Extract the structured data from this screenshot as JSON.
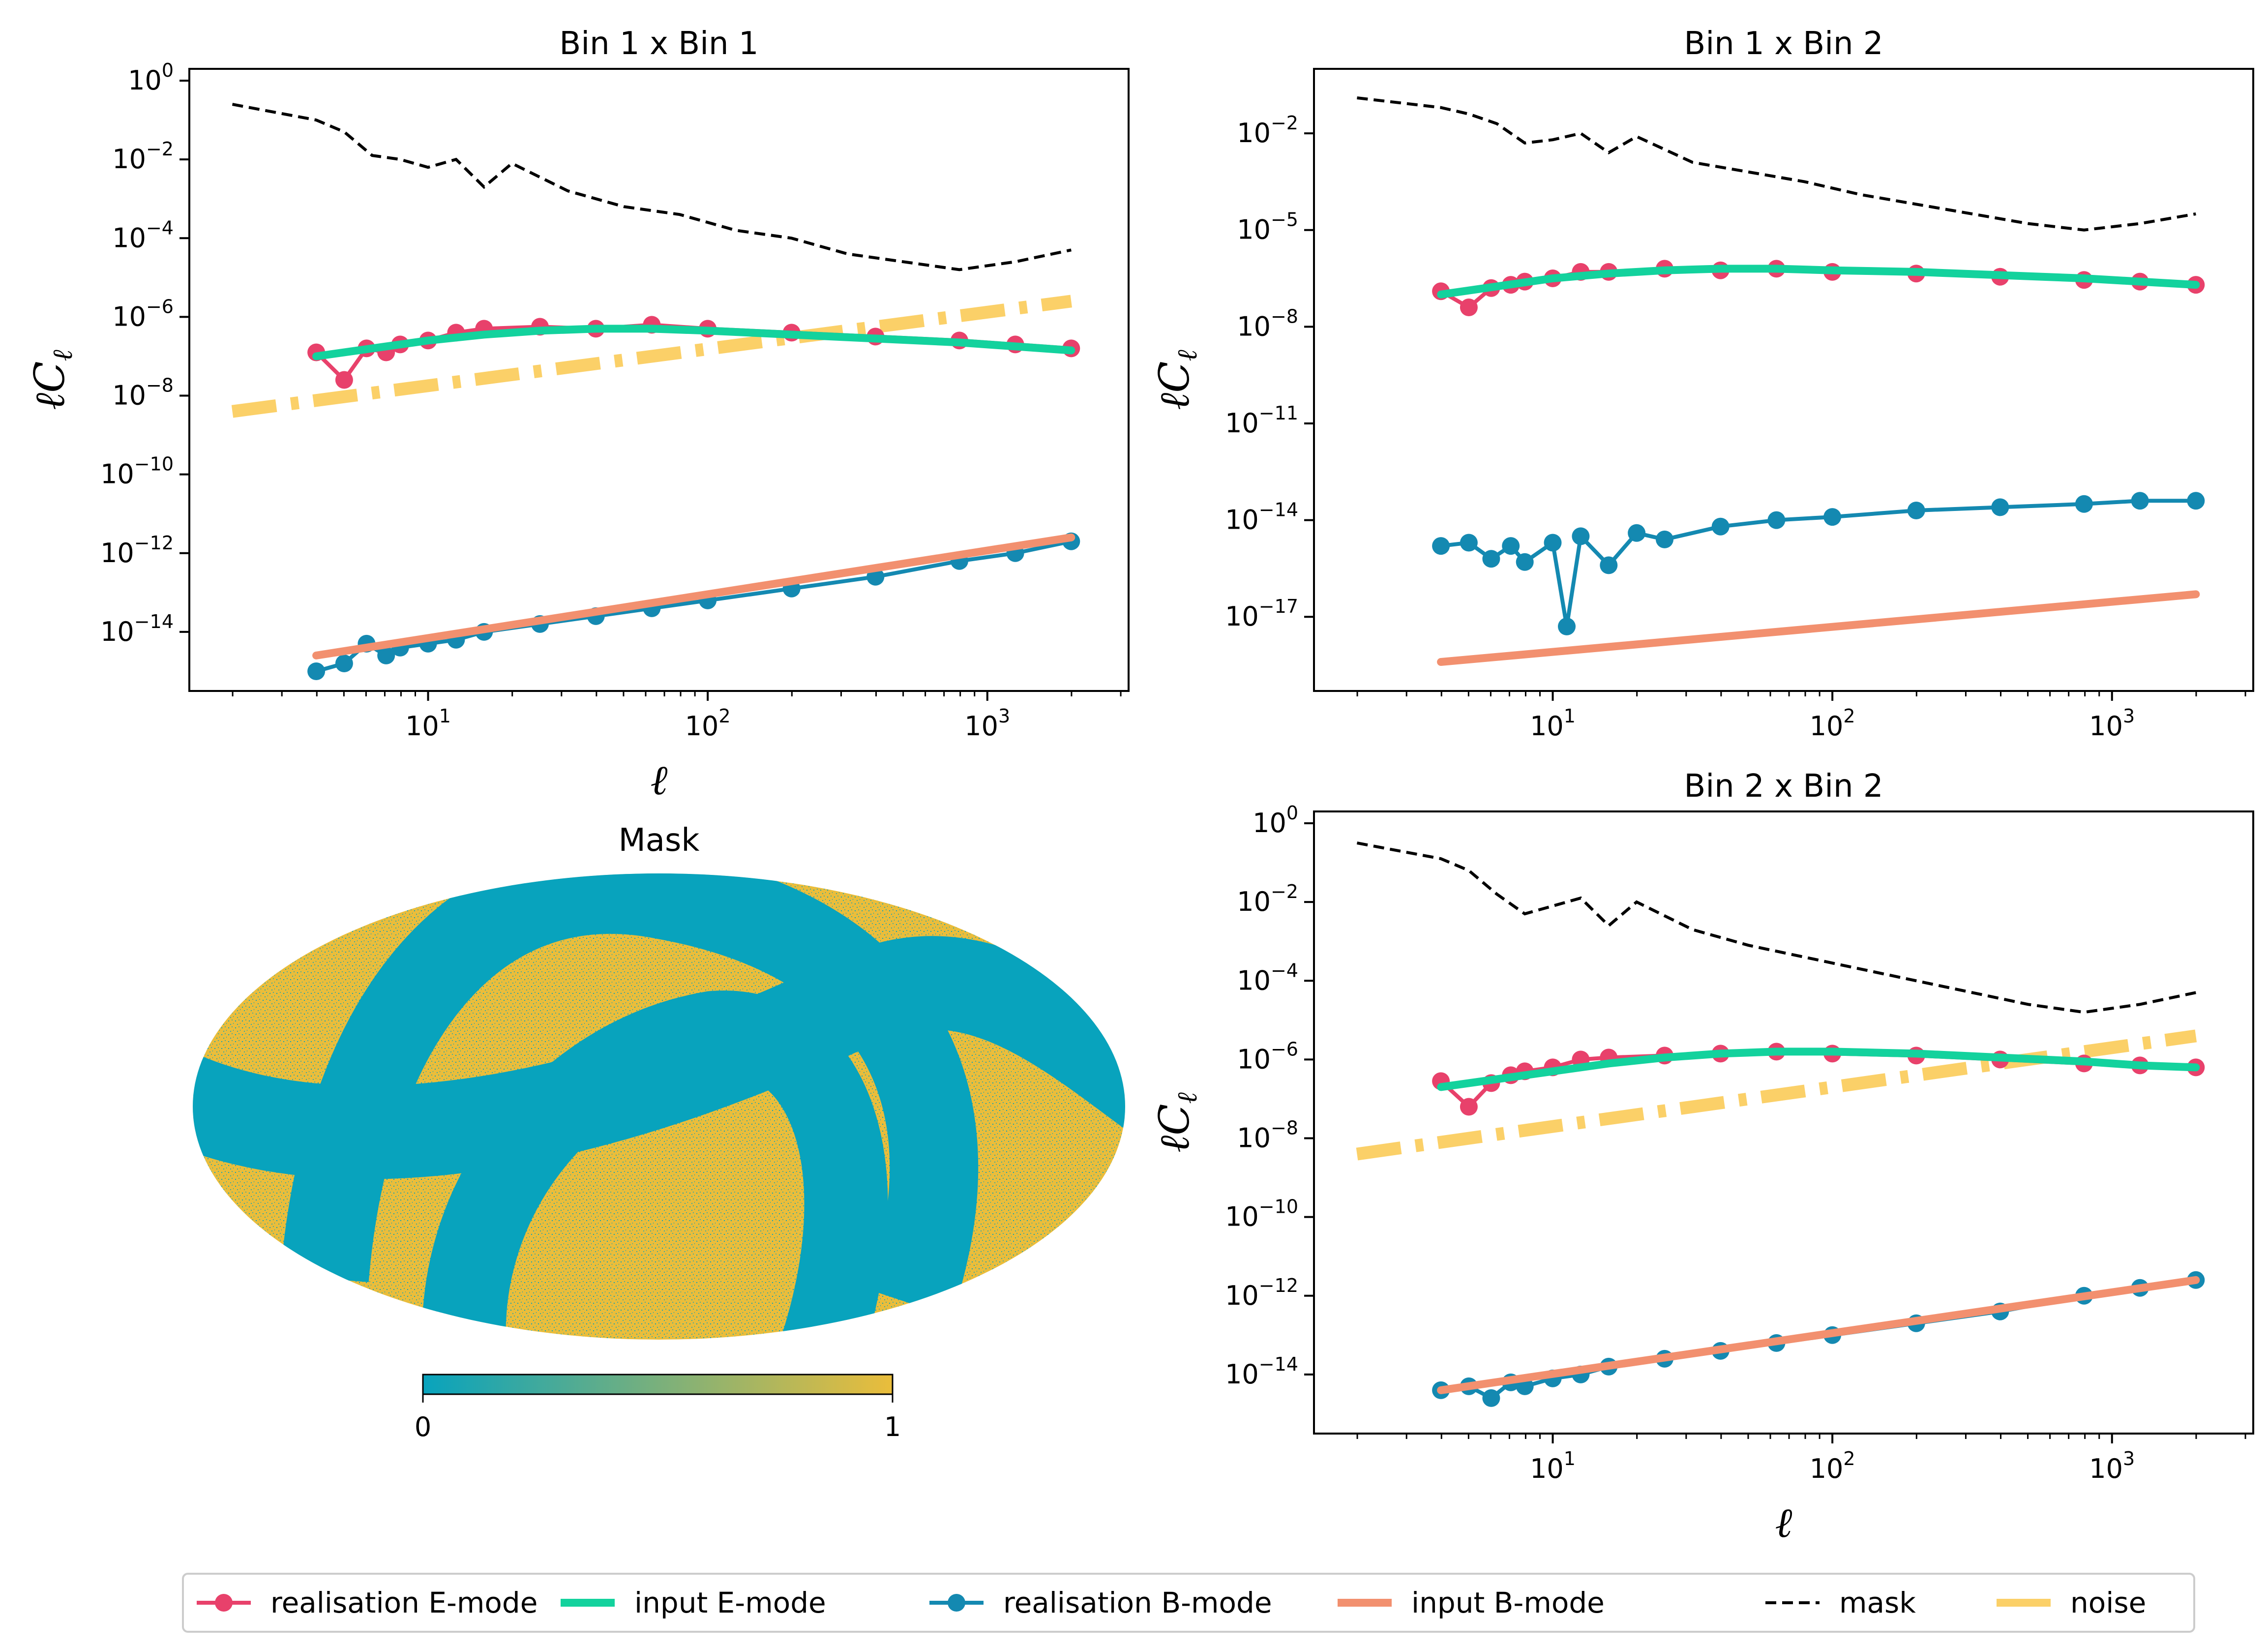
{
  "colors": {
    "eReal": "#e8416b",
    "eInput": "#13d29d",
    "bReal": "#1489b1",
    "bInput": "#f2906f",
    "mask": "#000000",
    "noise": "#fbd068",
    "maskLow": "#08a3bd",
    "maskHigh": "#eabd3b"
  },
  "legend": {
    "items": [
      {
        "label": "realisation E-mode",
        "style": "line-marker",
        "colorKey": "eReal"
      },
      {
        "label": "input E-mode",
        "style": "thick-line",
        "colorKey": "eInput"
      },
      {
        "label": "realisation B-mode",
        "style": "line-marker",
        "colorKey": "bReal"
      },
      {
        "label": "input B-mode",
        "style": "thick-line",
        "colorKey": "bInput"
      },
      {
        "label": "mask",
        "style": "dashed",
        "colorKey": "mask"
      },
      {
        "label": "noise",
        "style": "thick-line",
        "colorKey": "noise"
      }
    ]
  },
  "maskPanel": {
    "title": "Mask",
    "colorbar": {
      "min_label": "0",
      "max_label": "1"
    }
  },
  "chart_data": [
    {
      "type": "line",
      "title": "Bin 1 x Bin 1",
      "xlabel": "ℓ",
      "ylabel": "ℓC",
      "ylabel_sub": "ℓ",
      "xscale": "log",
      "yscale": "log",
      "xlim": [
        1.4,
        3200
      ],
      "ylim_log10": [
        -15.5,
        0.3
      ],
      "xticks": [
        {
          "base": "10",
          "exp": "1"
        },
        {
          "base": "10",
          "exp": "2"
        },
        {
          "base": "10",
          "exp": "3"
        }
      ],
      "yticks": [
        {
          "base": "10",
          "exp": "0"
        },
        {
          "base": "10",
          "exp": "−2"
        },
        {
          "base": "10",
          "exp": "−4"
        },
        {
          "base": "10",
          "exp": "−6"
        },
        {
          "base": "10",
          "exp": "−8"
        },
        {
          "base": "10",
          "exp": "−10"
        },
        {
          "base": "10",
          "exp": "−12"
        },
        {
          "base": "10",
          "exp": "−14"
        }
      ],
      "xtick_values": [
        10,
        100,
        1000
      ],
      "ytick_log10": [
        0,
        -2,
        -4,
        -6,
        -8,
        -10,
        -12,
        -14
      ],
      "series": [
        {
          "name": "mask",
          "log10_ell": [
            0.3,
            0.6,
            0.7,
            0.8,
            0.9,
            1.0,
            1.1,
            1.2,
            1.3,
            1.5,
            1.7,
            1.9,
            2.1,
            2.3,
            2.5,
            2.7,
            2.9,
            3.1,
            3.3
          ],
          "log10_y": [
            -0.6,
            -1.0,
            -1.3,
            -1.9,
            -2.0,
            -2.2,
            -2.0,
            -2.7,
            -2.1,
            -2.8,
            -3.2,
            -3.4,
            -3.8,
            -4.0,
            -4.4,
            -4.6,
            -4.8,
            -4.6,
            -4.3
          ]
        },
        {
          "name": "noise",
          "log10_ell": [
            0.3,
            3.3
          ],
          "log10_y": [
            -8.4,
            -5.6
          ]
        },
        {
          "name": "input E-mode",
          "log10_ell": [
            0.6,
            0.8,
            1.0,
            1.2,
            1.4,
            1.6,
            1.8,
            2.0,
            2.3,
            2.6,
            2.9,
            3.1,
            3.3
          ],
          "log10_y": [
            -7.0,
            -6.8,
            -6.6,
            -6.45,
            -6.35,
            -6.3,
            -6.3,
            -6.35,
            -6.45,
            -6.55,
            -6.65,
            -6.75,
            -6.85
          ]
        },
        {
          "name": "realisation E-mode",
          "log10_ell": [
            0.6,
            0.7,
            0.78,
            0.85,
            0.9,
            1.0,
            1.1,
            1.2,
            1.4,
            1.6,
            1.8,
            2.0,
            2.3,
            2.6,
            2.9,
            3.1,
            3.3
          ],
          "log10_y": [
            -6.9,
            -7.6,
            -6.8,
            -6.9,
            -6.7,
            -6.6,
            -6.4,
            -6.3,
            -6.25,
            -6.3,
            -6.2,
            -6.3,
            -6.4,
            -6.5,
            -6.6,
            -6.7,
            -6.8
          ]
        },
        {
          "name": "input B-mode",
          "log10_ell": [
            0.6,
            3.3
          ],
          "log10_y": [
            -14.6,
            -11.6
          ]
        },
        {
          "name": "realisation B-mode",
          "log10_ell": [
            0.6,
            0.7,
            0.78,
            0.85,
            0.9,
            1.0,
            1.1,
            1.2,
            1.4,
            1.6,
            1.8,
            2.0,
            2.3,
            2.6,
            2.9,
            3.1,
            3.3
          ],
          "log10_y": [
            -15.0,
            -14.8,
            -14.3,
            -14.6,
            -14.4,
            -14.3,
            -14.2,
            -14.0,
            -13.8,
            -13.6,
            -13.4,
            -13.2,
            -12.9,
            -12.6,
            -12.2,
            -12.0,
            -11.7
          ]
        }
      ]
    },
    {
      "type": "line",
      "title": "Bin 1 x Bin 2",
      "xlabel": "",
      "ylabel": "ℓC",
      "ylabel_sub": "ℓ",
      "xscale": "log",
      "yscale": "log",
      "xlim": [
        1.4,
        3200
      ],
      "ylim_log10": [
        -19.3,
        0.0
      ],
      "xticks": [
        {
          "base": "10",
          "exp": "1"
        },
        {
          "base": "10",
          "exp": "2"
        },
        {
          "base": "10",
          "exp": "3"
        }
      ],
      "yticks": [
        {
          "base": "10",
          "exp": "−2"
        },
        {
          "base": "10",
          "exp": "−5"
        },
        {
          "base": "10",
          "exp": "−8"
        },
        {
          "base": "10",
          "exp": "−11"
        },
        {
          "base": "10",
          "exp": "−14"
        },
        {
          "base": "10",
          "exp": "−17"
        }
      ],
      "xtick_values": [
        10,
        100,
        1000
      ],
      "ytick_log10": [
        -2,
        -5,
        -8,
        -11,
        -14,
        -17
      ],
      "series": [
        {
          "name": "mask",
          "log10_ell": [
            0.3,
            0.6,
            0.7,
            0.8,
            0.9,
            1.0,
            1.1,
            1.2,
            1.3,
            1.5,
            1.7,
            1.9,
            2.1,
            2.3,
            2.5,
            2.7,
            2.9,
            3.1,
            3.3
          ],
          "log10_y": [
            -0.9,
            -1.2,
            -1.4,
            -1.7,
            -2.3,
            -2.2,
            -2.0,
            -2.6,
            -2.1,
            -2.9,
            -3.2,
            -3.5,
            -3.9,
            -4.2,
            -4.5,
            -4.8,
            -5.0,
            -4.8,
            -4.5
          ]
        },
        {
          "name": "input E-mode",
          "log10_ell": [
            0.6,
            0.8,
            1.0,
            1.2,
            1.4,
            1.6,
            1.8,
            2.0,
            2.3,
            2.6,
            2.9,
            3.1,
            3.3
          ],
          "log10_y": [
            -7.0,
            -6.75,
            -6.5,
            -6.35,
            -6.25,
            -6.2,
            -6.2,
            -6.25,
            -6.3,
            -6.4,
            -6.5,
            -6.6,
            -6.7
          ]
        },
        {
          "name": "realisation E-mode",
          "log10_ell": [
            0.6,
            0.7,
            0.78,
            0.85,
            0.9,
            1.0,
            1.1,
            1.2,
            1.4,
            1.6,
            1.8,
            2.0,
            2.3,
            2.6,
            2.9,
            3.1,
            3.3
          ],
          "log10_y": [
            -6.9,
            -7.4,
            -6.8,
            -6.7,
            -6.6,
            -6.5,
            -6.3,
            -6.3,
            -6.2,
            -6.25,
            -6.2,
            -6.3,
            -6.35,
            -6.45,
            -6.55,
            -6.6,
            -6.7
          ]
        },
        {
          "name": "input B-mode",
          "log10_ell": [
            0.6,
            3.3
          ],
          "log10_y": [
            -18.4,
            -16.3
          ]
        },
        {
          "name": "realisation B-mode",
          "log10_ell": [
            0.6,
            0.7,
            0.78,
            0.85,
            0.9,
            1.0,
            1.05,
            1.1,
            1.2,
            1.3,
            1.4,
            1.6,
            1.8,
            2.0,
            2.3,
            2.6,
            2.9,
            3.1,
            3.3
          ],
          "log10_y": [
            -14.8,
            -14.7,
            -15.2,
            -14.8,
            -15.3,
            -14.7,
            -17.3,
            -14.5,
            -15.4,
            -14.4,
            -14.6,
            -14.2,
            -14.0,
            -13.9,
            -13.7,
            -13.6,
            -13.5,
            -13.4,
            -13.4
          ]
        }
      ]
    },
    {
      "type": "line",
      "title": "Bin 2 x Bin 2",
      "xlabel": "ℓ",
      "ylabel": "ℓC",
      "ylabel_sub": "ℓ",
      "xscale": "log",
      "yscale": "log",
      "xlim": [
        1.4,
        3200
      ],
      "ylim_log10": [
        -15.5,
        0.3
      ],
      "xticks": [
        {
          "base": "10",
          "exp": "1"
        },
        {
          "base": "10",
          "exp": "2"
        },
        {
          "base": "10",
          "exp": "3"
        }
      ],
      "yticks": [
        {
          "base": "10",
          "exp": "0"
        },
        {
          "base": "10",
          "exp": "−2"
        },
        {
          "base": "10",
          "exp": "−4"
        },
        {
          "base": "10",
          "exp": "−6"
        },
        {
          "base": "10",
          "exp": "−8"
        },
        {
          "base": "10",
          "exp": "−10"
        },
        {
          "base": "10",
          "exp": "−12"
        },
        {
          "base": "10",
          "exp": "−14"
        }
      ],
      "xtick_values": [
        10,
        100,
        1000
      ],
      "ytick_log10": [
        0,
        -2,
        -4,
        -6,
        -8,
        -10,
        -12,
        -14
      ],
      "series": [
        {
          "name": "mask",
          "log10_ell": [
            0.3,
            0.6,
            0.7,
            0.8,
            0.9,
            1.0,
            1.1,
            1.2,
            1.3,
            1.5,
            1.7,
            1.9,
            2.1,
            2.3,
            2.5,
            2.7,
            2.9,
            3.1,
            3.3
          ],
          "log10_y": [
            -0.5,
            -0.9,
            -1.2,
            -1.8,
            -2.3,
            -2.1,
            -1.9,
            -2.6,
            -2.0,
            -2.7,
            -3.1,
            -3.4,
            -3.7,
            -4.0,
            -4.3,
            -4.6,
            -4.8,
            -4.6,
            -4.3
          ]
        },
        {
          "name": "noise",
          "log10_ell": [
            0.3,
            3.3
          ],
          "log10_y": [
            -8.4,
            -5.4
          ]
        },
        {
          "name": "input E-mode",
          "log10_ell": [
            0.6,
            0.8,
            1.0,
            1.2,
            1.4,
            1.6,
            1.8,
            2.0,
            2.3,
            2.6,
            2.9,
            3.1,
            3.3
          ],
          "log10_y": [
            -6.7,
            -6.5,
            -6.3,
            -6.1,
            -5.95,
            -5.85,
            -5.8,
            -5.8,
            -5.85,
            -5.95,
            -6.05,
            -6.15,
            -6.2
          ]
        },
        {
          "name": "realisation E-mode",
          "log10_ell": [
            0.6,
            0.7,
            0.78,
            0.85,
            0.9,
            1.0,
            1.1,
            1.2,
            1.4,
            1.6,
            1.8,
            2.0,
            2.3,
            2.6,
            2.9,
            3.1,
            3.3
          ],
          "log10_y": [
            -6.55,
            -7.2,
            -6.6,
            -6.4,
            -6.3,
            -6.2,
            -6.0,
            -5.95,
            -5.9,
            -5.85,
            -5.8,
            -5.85,
            -5.9,
            -6.0,
            -6.1,
            -6.15,
            -6.2
          ]
        },
        {
          "name": "input B-mode",
          "log10_ell": [
            0.6,
            3.3
          ],
          "log10_y": [
            -14.4,
            -11.6
          ]
        },
        {
          "name": "realisation B-mode",
          "log10_ell": [
            0.6,
            0.7,
            0.78,
            0.85,
            0.9,
            1.0,
            1.1,
            1.2,
            1.4,
            1.6,
            1.8,
            2.0,
            2.3,
            2.6,
            2.9,
            3.1,
            3.3
          ],
          "log10_y": [
            -14.4,
            -14.3,
            -14.6,
            -14.2,
            -14.3,
            -14.1,
            -14.0,
            -13.8,
            -13.6,
            -13.4,
            -13.2,
            -13.0,
            -12.7,
            -12.4,
            -12.0,
            -11.8,
            -11.6
          ]
        }
      ]
    }
  ]
}
